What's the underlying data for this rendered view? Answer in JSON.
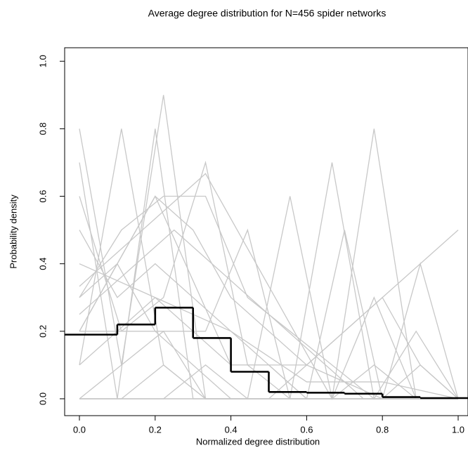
{
  "chart_data": {
    "type": "line",
    "title": "Average degree distribution for N=456 spider networks",
    "xlabel": "Normalized degree distribution",
    "ylabel": "Probability density",
    "xlim": [
      -0.039,
      1.026
    ],
    "ylim": [
      -0.05,
      1.04
    ],
    "xticks": [
      {
        "value": 0,
        "label": "0.0"
      },
      0.2,
      0.4,
      0.6,
      0.8,
      {
        "value": 1,
        "label": "1.0"
      }
    ],
    "yticks": [
      {
        "value": 0,
        "label": "0.0"
      },
      0.2,
      0.4,
      0.6,
      0.8,
      {
        "value": 1,
        "label": "1.0"
      }
    ],
    "series": [
      {
        "color": "#c8c8c8",
        "x": [
          0,
          0.111,
          0.222,
          0.333,
          0.444,
          0.556,
          0.667,
          0.778,
          0.889,
          1
        ],
        "values": [
          0.8,
          0.1,
          0.9,
          0,
          0,
          0,
          0,
          0.1,
          0,
          0
        ]
      },
      {
        "color": "#c8c8c8",
        "x": [
          0,
          0.111,
          0.222,
          0.333,
          0.444,
          0.556,
          0.667,
          0.778,
          0.889,
          1
        ],
        "values": [
          0.1,
          0.8,
          0.1,
          0,
          0,
          0,
          0,
          0,
          0,
          0
        ]
      },
      {
        "color": "#c8c8c8",
        "x": [
          0,
          0.111,
          0.222,
          0.333,
          0.444,
          0.556,
          0.667,
          0.778,
          0.889,
          1
        ],
        "values": [
          0.6,
          0.2,
          0.2,
          0,
          0,
          0,
          0,
          0,
          0,
          0
        ]
      },
      {
        "color": "#c8c8c8",
        "x": [
          0,
          0.111,
          0.222,
          0.333,
          0.444,
          0.556,
          0.667,
          0.778,
          0.889,
          1
        ],
        "values": [
          0.2,
          0.2,
          0.3,
          0.7,
          0.1,
          0,
          0,
          0,
          0,
          0
        ]
      },
      {
        "color": "#c8c8c8",
        "x": [
          0,
          0.111,
          0.222,
          0.333,
          0.444,
          0.556,
          0.667,
          0.778,
          0.889,
          1
        ],
        "values": [
          0,
          0.1,
          0.2,
          0.2,
          0.5,
          0,
          0,
          0,
          0,
          0
        ]
      },
      {
        "color": "#c8c8c8",
        "x": [
          0,
          0.111,
          0.222,
          0.333,
          0.444,
          0.556,
          0.667,
          0.778,
          0.889,
          1
        ],
        "values": [
          0,
          0,
          0,
          0.1,
          0,
          0.6,
          0,
          0.3,
          0,
          0
        ]
      },
      {
        "color": "#c8c8c8",
        "x": [
          0,
          0.111,
          0.222,
          0.333,
          0.444,
          0.556,
          0.667,
          0.778,
          0.889,
          1
        ],
        "values": [
          0,
          0,
          0.1,
          0,
          0,
          0,
          0.7,
          0,
          0.2,
          0
        ]
      },
      {
        "color": "#c8c8c8",
        "x": [
          0,
          0.111,
          0.222,
          0.333,
          0.444,
          0.556,
          0.667,
          0.778,
          0.889,
          1
        ],
        "values": [
          0,
          0,
          0,
          0,
          0,
          0,
          0,
          0.8,
          0,
          0
        ]
      },
      {
        "color": "#c8c8c8",
        "x": [
          0,
          0.1,
          0.2,
          0.3,
          0.4,
          0.5,
          0.6,
          0.7,
          0.8,
          0.9,
          1
        ],
        "values": [
          0.7,
          0,
          0.8,
          0,
          0,
          0,
          0,
          0,
          0,
          0,
          0
        ]
      },
      {
        "color": "#c8c8c8",
        "x": [
          0,
          0.1,
          0.2,
          0.3,
          0.4,
          0.5,
          0.6,
          0.7,
          0.8,
          0.9,
          1
        ],
        "values": [
          0.3,
          0.4,
          0.2,
          0.1,
          0,
          0,
          0,
          0,
          0,
          0,
          0
        ]
      },
      {
        "color": "#c8c8c8",
        "x": [
          0,
          0.1,
          0.2,
          0.3,
          0.4,
          0.5,
          0.6,
          0.7,
          0.8,
          0.9,
          1
        ],
        "values": [
          0.5,
          0.3,
          0.4,
          0.3,
          0.2,
          0.1,
          0,
          0,
          0,
          0,
          0
        ]
      },
      {
        "color": "#c8c8c8",
        "x": [
          0,
          0.1,
          0.2,
          0.3,
          0.4,
          0.5,
          0.6,
          0.7,
          0.8,
          0.9,
          1
        ],
        "values": [
          0.1,
          0.2,
          0.3,
          0.2,
          0.1,
          0.1,
          0,
          0.5,
          0,
          0.1,
          0
        ]
      },
      {
        "color": "#c8c8c8",
        "x": [
          0,
          0.1,
          0.2,
          0.3,
          0.4,
          0.5,
          0.6,
          0.7,
          0.8,
          0.9,
          1
        ],
        "values": [
          0,
          0,
          0,
          0,
          0,
          0,
          0,
          0,
          0,
          0.4,
          0
        ]
      },
      {
        "color": "#c8c8c8",
        "x": [
          0,
          0.2,
          0.4,
          0.6,
          0.8,
          1
        ],
        "values": [
          0.4,
          0.3,
          0.2,
          0.05,
          0.05,
          0
        ]
      },
      {
        "color": "#c8c8c8",
        "x": [
          0,
          0.2,
          0.4,
          0.6,
          0.8,
          1
        ],
        "values": [
          0.2,
          0.6,
          0.1,
          0.1,
          0,
          0
        ]
      },
      {
        "color": "#c8c8c8",
        "x": [
          0,
          0.25,
          0.5,
          0.75,
          1
        ],
        "values": [
          0.25,
          0.5,
          0.25,
          0,
          0
        ]
      },
      {
        "color": "#c8c8c8",
        "x": [
          0,
          0.25,
          0.5,
          0.75,
          1
        ],
        "values": [
          0,
          0,
          0,
          0.25,
          0.5
        ]
      },
      {
        "color": "#c8c8c8",
        "x": [
          0,
          0.333,
          0.667,
          1
        ],
        "values": [
          0.333,
          0.667,
          0,
          0
        ]
      },
      {
        "color": "#c8c8c8",
        "x": [
          0,
          0.111,
          0.222,
          0.333,
          0.444,
          0.556,
          0.667,
          0.778,
          0.889,
          1
        ],
        "values": [
          0.3,
          0.5,
          0.6,
          0.6,
          0.3,
          0.2,
          0.1,
          0,
          0,
          0
        ]
      },
      {
        "color": "#c8c8c8",
        "x": [
          0,
          0.1,
          0.2,
          0.3,
          0.4,
          0.5,
          0.6,
          0.7,
          0.8,
          0.9,
          1
        ],
        "values": [
          0.2,
          0.4,
          0.6,
          0.5,
          0.3,
          0.2,
          0.1,
          0.2,
          0.3,
          0.1,
          0
        ]
      }
    ],
    "step": {
      "color": "#000000",
      "x": [
        0,
        0.1,
        0.2,
        0.3,
        0.4,
        0.5,
        0.6,
        0.7,
        0.8,
        0.9
      ],
      "values": [
        0.19,
        0.22,
        0.27,
        0.18,
        0.08,
        0.02,
        0.018,
        0.015,
        0.005,
        0.002
      ]
    }
  }
}
